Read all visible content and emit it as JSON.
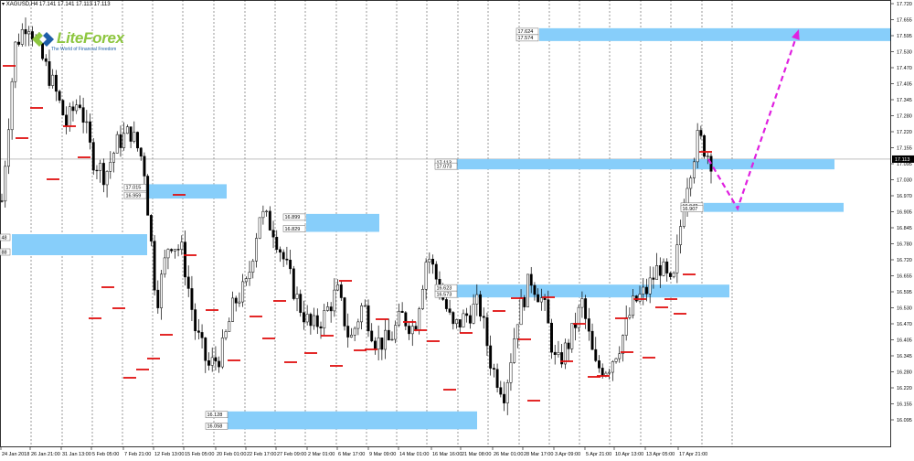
{
  "header": {
    "symbol_info": "XAGUSD,H4 17.141 17.141 17.113 17.113"
  },
  "logo": {
    "brand": "LiteForex",
    "tagline": "The World of Financial Freedom",
    "colors": {
      "green": "#8dc63f",
      "blue": "#1f5fa8"
    }
  },
  "price_axis": {
    "labels": [
      "17.720",
      "17.655",
      "17.595",
      "17.530",
      "17.470",
      "17.405",
      "17.345",
      "17.280",
      "17.220",
      "17.155",
      "17.095",
      "17.030",
      "16.970",
      "16.905",
      "16.845",
      "16.780",
      "16.720",
      "16.655",
      "16.595",
      "16.530",
      "16.470",
      "16.405",
      "16.345",
      "16.280",
      "16.220",
      "16.155",
      "16.095"
    ],
    "current_price": "17.113"
  },
  "time_axis": {
    "labels": [
      "24 Jan 2018",
      "26 Jan 21:00",
      "31 Jan 13:00",
      "5 Feb 05:00",
      "7 Feb 21:00",
      "12 Feb 13:00",
      "15 Feb 05:00",
      "20 Feb 01:00",
      "22 Feb 17:00",
      "27 Feb 09:00",
      "2 Mar 01:00",
      "6 Mar 17:00",
      "9 Mar 09:00",
      "14 Mar 01:00",
      "16 Mar 16:00",
      "21 Mar 08:00",
      "26 Mar 01:00",
      "28 Mar 17:00",
      "3 Apr 09:00",
      "5 Apr 21:00",
      "10 Apr 13:00",
      "13 Apr 05:00",
      "17 Apr 21:00"
    ]
  },
  "zones": [
    {
      "id": "zone-top",
      "labels": [
        "17.624",
        "17.574"
      ]
    },
    {
      "id": "zone-current",
      "labels": [
        "17.113",
        "17.073"
      ]
    },
    {
      "id": "zone-feb-mid",
      "labels": [
        "17.015",
        "16.959"
      ]
    },
    {
      "id": "zone-mar-mid",
      "labels": [
        "16.899",
        "16.829"
      ]
    },
    {
      "id": "zone-apr-target",
      "labels": [
        "16.942",
        "16.907"
      ]
    },
    {
      "id": "zone-mar-low",
      "labels": [
        "16.623",
        "16.573"
      ]
    },
    {
      "id": "zone-bottom",
      "labels": [
        "16.128",
        "16.058"
      ]
    },
    {
      "id": "zone-left-mid",
      "labels": [
        "48",
        "88"
      ]
    }
  ],
  "colors": {
    "zone_fill": "#87cefa",
    "forecast_arrow": "#e020e0",
    "level_mark": "#e01010",
    "candle": "#000000",
    "grid": "#000000"
  },
  "chart_data": {
    "type": "candlestick",
    "symbol": "XAGUSD",
    "timeframe": "H4",
    "ylim": [
      16.06,
      17.75
    ],
    "last_price": 17.113,
    "ohlc_header": {
      "open": 17.141,
      "high": 17.141,
      "low": 17.113,
      "close": 17.113
    },
    "forecast_path": [
      17.113,
      16.92,
      17.61
    ],
    "closes_approx": [
      16.95,
      17.55,
      17.66,
      17.52,
      17.4,
      17.25,
      17.35,
      17.12,
      17.05,
      17.18,
      17.22,
      17.1,
      16.55,
      16.8,
      16.75,
      16.45,
      16.3,
      16.35,
      16.55,
      16.62,
      16.9,
      16.85,
      16.7,
      16.55,
      16.45,
      16.5,
      16.6,
      16.4,
      16.55,
      16.4,
      16.4,
      16.5,
      16.45,
      16.75,
      16.6,
      16.45,
      16.5,
      16.55,
      16.3,
      16.2,
      16.5,
      16.65,
      16.55,
      16.3,
      16.4,
      16.55,
      16.3,
      16.3,
      16.4,
      16.55,
      16.6,
      16.7,
      16.6,
      17.0,
      17.2,
      17.11
    ]
  }
}
